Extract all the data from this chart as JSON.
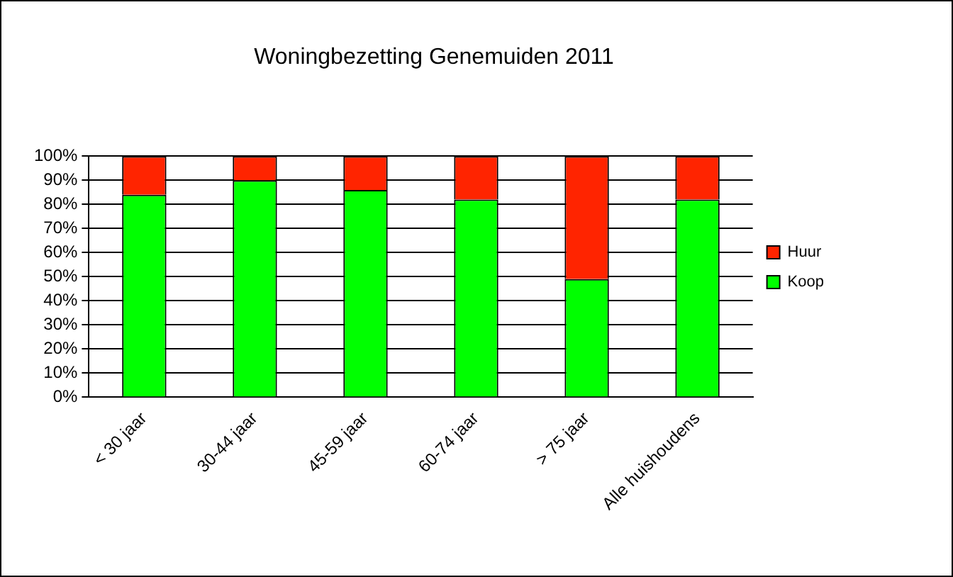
{
  "chart_data": {
    "type": "bar",
    "title": "Woningbezetting Genemuiden 2011",
    "stacked": true,
    "categories": [
      "< 30 jaar",
      "30-44 jaar",
      "45-59 jaar",
      "60-74 jaar",
      "> 75 jaar",
      "Alle huishoudens"
    ],
    "series": [
      {
        "name": "Koop",
        "color": "#00ff00",
        "values": [
          84,
          90,
          86,
          82,
          49,
          82
        ]
      },
      {
        "name": "Huur",
        "color": "#ff2400",
        "values": [
          16,
          10,
          14,
          18,
          51,
          18
        ]
      }
    ],
    "ylim": [
      0,
      100
    ],
    "yticks": [
      {
        "value": 0,
        "label": "0%"
      },
      {
        "value": 10,
        "label": "10%"
      },
      {
        "value": 20,
        "label": "20%"
      },
      {
        "value": 30,
        "label": "30%"
      },
      {
        "value": 40,
        "label": "40%"
      },
      {
        "value": 50,
        "label": "50%"
      },
      {
        "value": 60,
        "label": "60%"
      },
      {
        "value": 70,
        "label": "70%"
      },
      {
        "value": 80,
        "label": "80%"
      },
      {
        "value": 90,
        "label": "90%"
      },
      {
        "value": 100,
        "label": "100%"
      }
    ],
    "grid": "y",
    "legend": "right"
  }
}
